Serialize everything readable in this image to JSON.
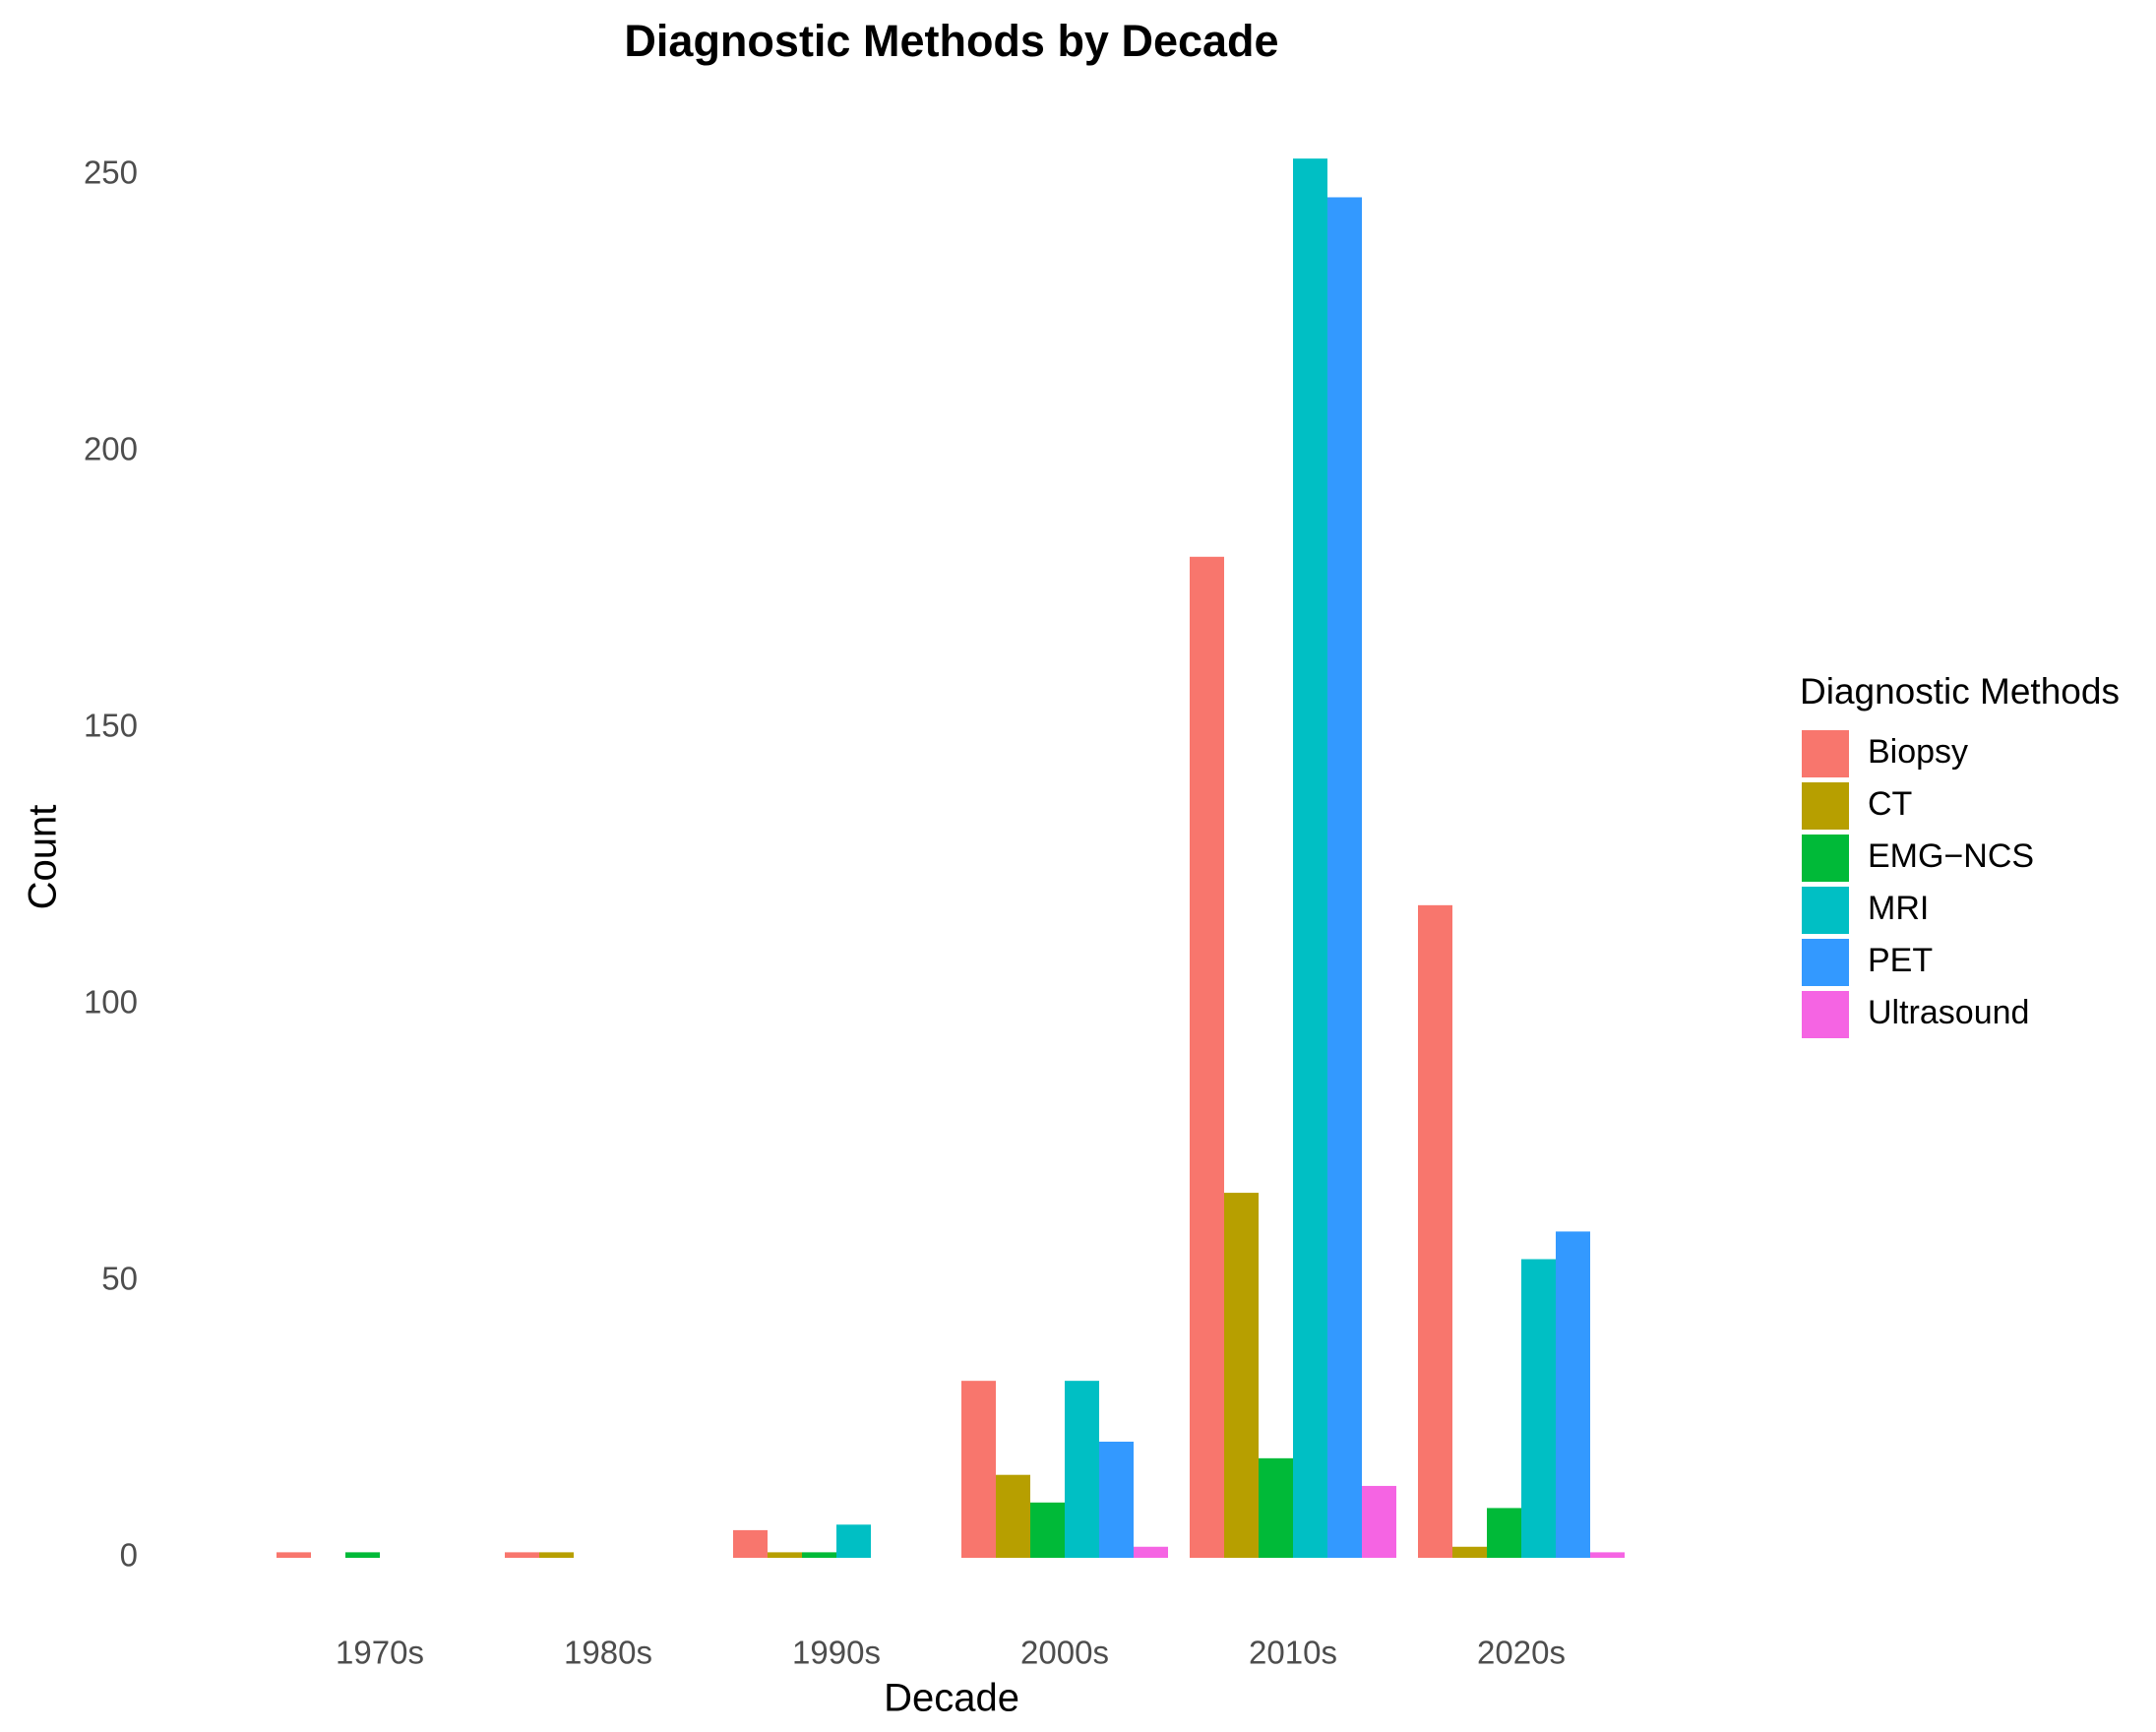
{
  "chart_data": {
    "type": "bar",
    "title": "Diagnostic Methods by Decade",
    "x_label": "Decade",
    "y_label": "Count",
    "legend_title": "Diagnostic Methods",
    "categories": [
      "1970s",
      "1980s",
      "1990s",
      "2000s",
      "2010s",
      "2020s"
    ],
    "series": [
      {
        "name": "Biopsy",
        "color": "#f8766d",
        "values": [
          1,
          1,
          5,
          32,
          181,
          118
        ]
      },
      {
        "name": "CT",
        "color": "#b79f00",
        "values": [
          0,
          1,
          1,
          15,
          66,
          2
        ]
      },
      {
        "name": "EMG−NCS",
        "color": "#00ba38",
        "values": [
          1,
          0,
          1,
          10,
          18,
          9
        ]
      },
      {
        "name": "MRI",
        "color": "#00bfc4",
        "values": [
          0,
          0,
          6,
          32,
          253,
          54
        ]
      },
      {
        "name": "PET",
        "color": "#3399ff",
        "values": [
          0,
          0,
          0,
          21,
          246,
          59
        ]
      },
      {
        "name": "Ultrasound",
        "color": "#f564e3",
        "values": [
          0,
          0,
          0,
          2,
          13,
          1
        ]
      }
    ],
    "ylim": [
      0,
      250
    ],
    "yticks": [
      0,
      50,
      100,
      150,
      200,
      250
    ],
    "grid": false,
    "legend": "right"
  }
}
